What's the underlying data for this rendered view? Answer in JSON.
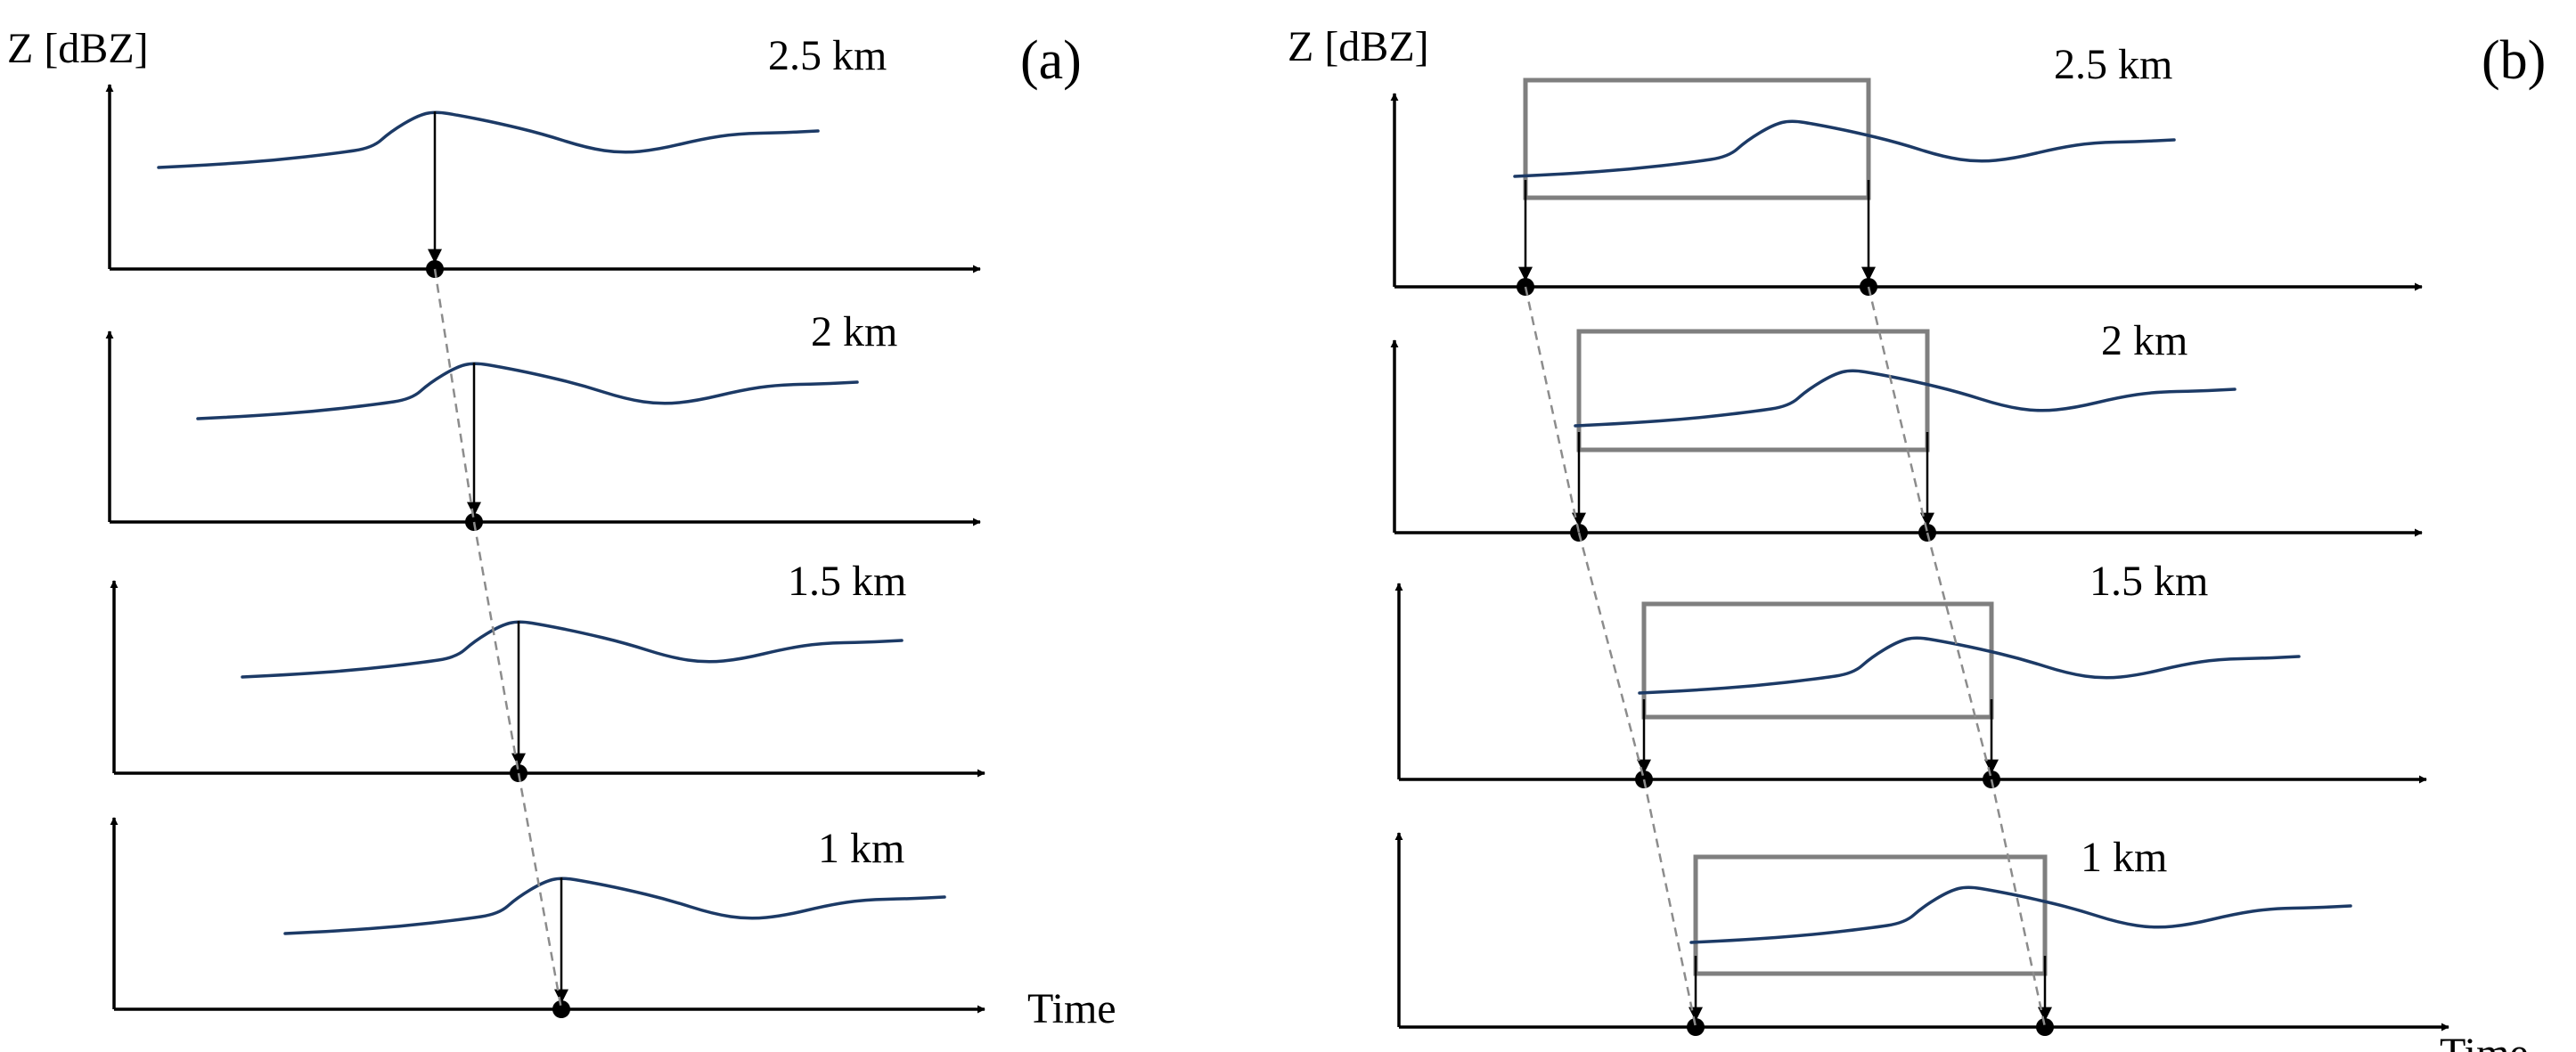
{
  "colors": {
    "curve": "#1c3a66",
    "axis": "#000000",
    "window": "#7f7f7f",
    "link": "#8c8c8c"
  },
  "panel_a": {
    "panel_label": "(a)",
    "y_axis_label": "Z [dBZ]",
    "x_axis_label": "Time",
    "rows": [
      {
        "height_label": "2.5 km"
      },
      {
        "height_label": "2 km"
      },
      {
        "height_label": "1.5 km"
      },
      {
        "height_label": "1 km"
      }
    ]
  },
  "panel_b": {
    "panel_label": "(b)",
    "y_axis_label": "Z [dBZ]",
    "x_axis_label": "Time",
    "rows": [
      {
        "height_label": "2.5 km"
      },
      {
        "height_label": "2 km"
      },
      {
        "height_label": "1.5 km"
      },
      {
        "height_label": "1 km"
      }
    ]
  }
}
